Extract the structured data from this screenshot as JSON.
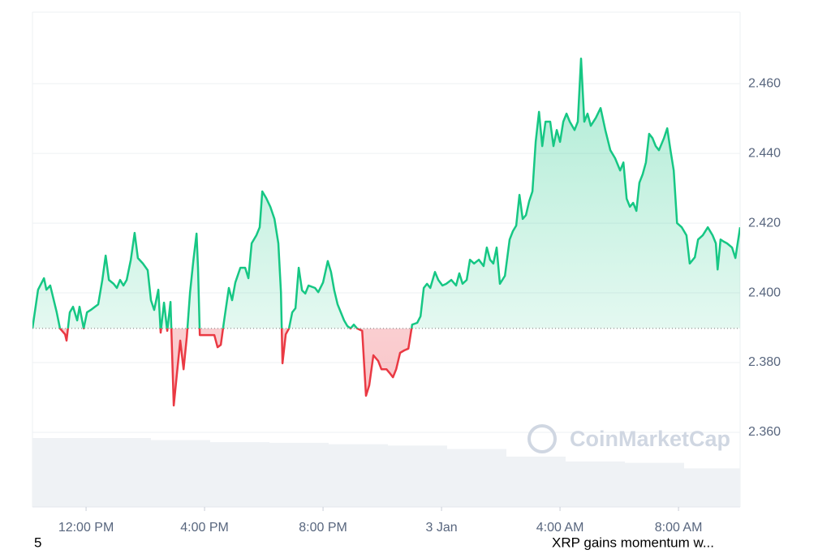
{
  "chart_data": {
    "type": "line",
    "x": [
      -1.81,
      -1.62,
      -1.42,
      -1.34,
      -1.21,
      -0.99,
      -0.88,
      -0.71,
      -0.66,
      -0.55,
      -0.44,
      -0.3,
      -0.22,
      -0.08,
      0.03,
      0.16,
      0.3,
      0.41,
      0.55,
      0.66,
      0.77,
      0.93,
      1.04,
      1.15,
      1.26,
      1.37,
      1.51,
      1.64,
      1.75,
      1.92,
      2.08,
      2.19,
      2.3,
      2.44,
      2.52,
      2.63,
      2.74,
      2.85,
      2.96,
      3.07,
      3.18,
      3.29,
      3.4,
      3.51,
      3.62,
      3.73,
      3.78,
      3.84,
      4.16,
      4.33,
      4.44,
      4.55,
      4.66,
      4.82,
      4.93,
      5.04,
      5.21,
      5.37,
      5.48,
      5.59,
      5.75,
      5.86,
      5.95,
      6.08,
      6.22,
      6.36,
      6.49,
      6.58,
      6.63,
      6.74,
      6.85,
      6.96,
      7.07,
      7.18,
      7.29,
      7.4,
      7.51,
      7.73,
      7.84,
      8.0,
      8.16,
      8.27,
      8.38,
      8.49,
      8.6,
      8.71,
      8.82,
      8.93,
      9.04,
      9.15,
      9.32,
      9.45,
      9.56,
      9.7,
      9.86,
      9.97,
      10.14,
      10.25,
      10.36,
      10.47,
      10.6,
      10.74,
      10.88,
      11.01,
      11.18,
      11.29,
      11.4,
      11.51,
      11.62,
      11.78,
      11.89,
      12.03,
      12.16,
      12.33,
      12.49,
      12.6,
      12.71,
      12.85,
      12.96,
      13.1,
      13.26,
      13.42,
      13.53,
      13.64,
      13.75,
      13.86,
      13.97,
      14.14,
      14.3,
      14.41,
      14.52,
      14.63,
      14.74,
      14.85,
      14.96,
      15.07,
      15.18,
      15.29,
      15.4,
      15.51,
      15.67,
      15.78,
      15.89,
      16.0,
      16.11,
      16.22,
      16.33,
      16.49,
      16.6,
      16.71,
      16.82,
      16.93,
      17.04,
      17.21,
      17.37,
      17.53,
      17.7,
      17.86,
      18.03,
      18.14,
      18.25,
      18.36,
      18.47,
      18.58,
      18.68,
      18.79,
      18.9,
      19.01,
      19.12,
      19.23,
      19.34,
      19.51,
      19.62,
      19.73,
      19.84,
      19.95,
      20.11,
      20.27,
      20.38,
      20.55,
      20.66,
      20.82,
      20.99,
      21.15,
      21.26,
      21.32,
      21.42,
      21.53,
      21.64,
      21.81,
      21.92,
      22.08
    ],
    "values": [
      2.3898,
      2.4009,
      2.4042,
      2.4009,
      2.4021,
      2.3944,
      2.3898,
      2.3881,
      2.3863,
      2.3944,
      2.396,
      2.3921,
      2.396,
      2.3898,
      2.3944,
      2.3951,
      2.396,
      2.3967,
      2.4037,
      2.4107,
      2.4037,
      2.4026,
      2.4014,
      2.4037,
      2.4021,
      2.4037,
      2.4095,
      2.4172,
      2.41,
      2.4084,
      2.4065,
      2.3979,
      2.3951,
      2.4009,
      2.3886,
      2.3972,
      2.3891,
      2.3974,
      2.3677,
      2.377,
      2.3863,
      2.3781,
      2.3874,
      2.4002,
      2.4091,
      2.417,
      2.4072,
      2.3879,
      2.3879,
      2.3879,
      2.3844,
      2.3851,
      2.3921,
      2.4014,
      2.3979,
      2.403,
      2.4072,
      2.4072,
      2.4042,
      2.4142,
      2.4165,
      2.4188,
      2.4291,
      2.4272,
      2.4247,
      2.4212,
      2.4142,
      2.4002,
      2.3798,
      2.3881,
      2.3898,
      2.3944,
      2.3956,
      2.4072,
      2.4007,
      2.3998,
      2.4021,
      2.4014,
      2.4002,
      2.403,
      2.4091,
      2.406,
      2.4007,
      2.3967,
      2.3944,
      2.3921,
      2.3905,
      2.3898,
      2.3909,
      2.3898,
      2.3891,
      2.3705,
      2.3735,
      2.3821,
      2.3805,
      2.3781,
      2.3781,
      2.377,
      2.3758,
      2.3781,
      2.3828,
      2.3835,
      2.384,
      2.3909,
      2.3914,
      2.3933,
      2.4014,
      2.4026,
      2.4014,
      2.406,
      2.4037,
      2.4021,
      2.4026,
      2.4037,
      2.4021,
      2.4056,
      2.4026,
      2.4037,
      2.4095,
      2.4084,
      2.4095,
      2.4077,
      2.413,
      2.4095,
      2.4084,
      2.413,
      2.4026,
      2.4049,
      2.4153,
      2.4177,
      2.4193,
      2.4281,
      2.4212,
      2.4223,
      2.4263,
      2.4291,
      2.4433,
      2.4519,
      2.4421,
      2.4491,
      2.4491,
      2.4421,
      2.4467,
      2.4433,
      2.4491,
      2.4514,
      2.4491,
      2.4467,
      2.4491,
      2.4672,
      2.4491,
      2.4514,
      2.4479,
      2.4502,
      2.453,
      2.4467,
      2.4409,
      2.4386,
      2.4351,
      2.4374,
      2.427,
      2.4247,
      2.4258,
      2.4235,
      2.4316,
      2.434,
      2.4374,
      2.4456,
      2.4444,
      2.4421,
      2.4409,
      2.4444,
      2.4472,
      2.4409,
      2.4351,
      2.42,
      2.4188,
      2.4165,
      2.4084,
      2.4102,
      2.4153,
      2.4165,
      2.4188,
      2.4165,
      2.4142,
      2.4067,
      2.4153,
      2.4147,
      2.4142,
      2.413,
      2.41,
      2.4188
    ],
    "baseline": 2.3898,
    "colors": {
      "up": "#16c784",
      "down": "#ea3943",
      "volume": "#eff2f5",
      "grid": "#eef0f3"
    },
    "xlim": [
      -1.81,
      22.08
    ],
    "xticks": [
      {
        "value": 0,
        "label": "12:00 PM"
      },
      {
        "value": 4,
        "label": "4:00 PM"
      },
      {
        "value": 8,
        "label": "8:00 PM"
      },
      {
        "value": 12,
        "label": "3 Jan"
      },
      {
        "value": 16,
        "label": "4:00 AM"
      },
      {
        "value": 20,
        "label": "8:00 AM"
      }
    ],
    "ylim": [
      2.3386,
      2.4805
    ],
    "yticks": [
      {
        "value": 2.36,
        "label": "2.360"
      },
      {
        "value": 2.38,
        "label": "2.380"
      },
      {
        "value": 2.4,
        "label": "2.400"
      },
      {
        "value": 2.42,
        "label": "2.420"
      },
      {
        "value": 2.44,
        "label": "2.440"
      },
      {
        "value": 2.46,
        "label": "2.460"
      }
    ],
    "grid": true,
    "volume": {
      "x": [
        -1.81,
        0.19,
        2.19,
        4.19,
        6.19,
        8.19,
        10.19,
        12.19,
        14.19,
        16.19,
        18.19,
        20.19
      ],
      "values": [
        100,
        100,
        97,
        94,
        93,
        91,
        89,
        84,
        73,
        66,
        64,
        56
      ],
      "ylim": [
        0,
        100
      ]
    }
  },
  "watermark": "CoinMarketCap",
  "footer": {
    "left": "5",
    "headline": "XRP gains momentum w..."
  }
}
